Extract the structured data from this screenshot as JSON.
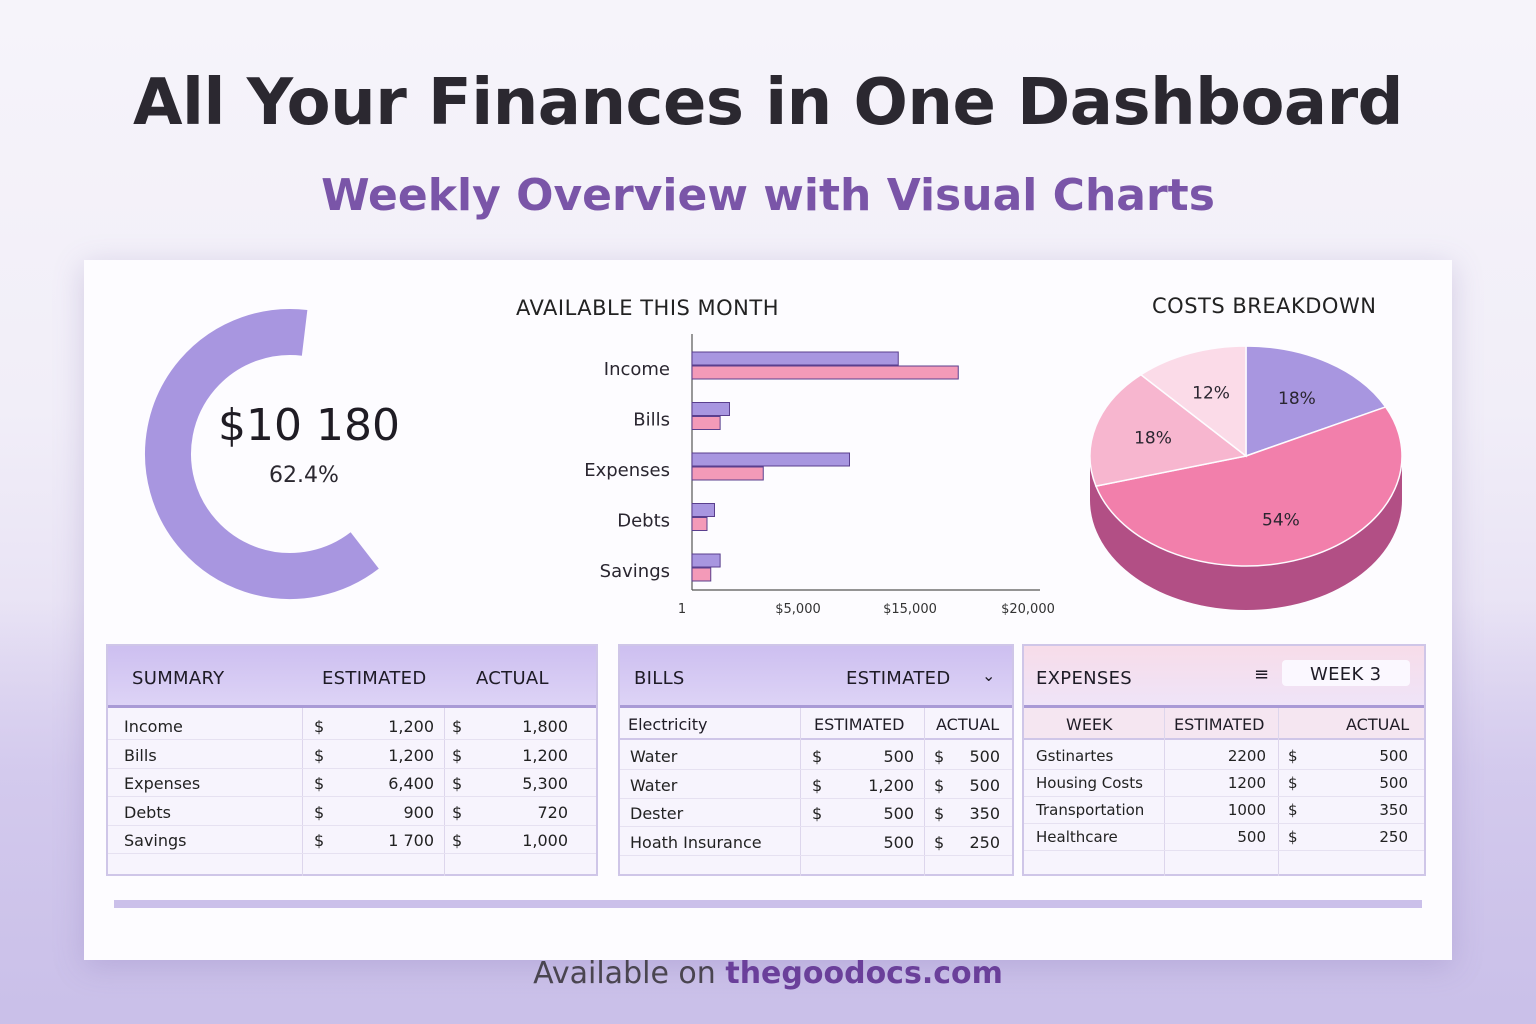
{
  "hero": {
    "title": "All Your Finances in One Dashboard",
    "subtitle": "Weekly Overview with Visual Charts"
  },
  "donut": {
    "amount": "$10 180",
    "percent": "62.4%",
    "fraction": 0.624,
    "color": "#a896e0"
  },
  "chart_data": [
    {
      "type": "bar",
      "title": "AVAILABLE THIS MONTH",
      "orientation": "horizontal",
      "categories": [
        "Income",
        "Bills",
        "Expenses",
        "Debts",
        "Savings"
      ],
      "series": [
        {
          "color": "#a896e0",
          "values": [
            11000,
            2000,
            8400,
            1200,
            1500
          ]
        },
        {
          "color": "#f39ab8",
          "values": [
            14200,
            1500,
            3800,
            800,
            1000
          ]
        }
      ],
      "tick_labels": [
        "1",
        "$5,000",
        "$15,000",
        "$20,000"
      ],
      "xlim": [
        0,
        16000
      ]
    },
    {
      "type": "pie",
      "title": "COSTS BREAKDOWN",
      "slices": [
        {
          "label": "18%",
          "value": 18,
          "color": "#a896e0"
        },
        {
          "label": "54%",
          "value": 54,
          "color": "#f27fab"
        },
        {
          "label": "18%",
          "value": 18,
          "color": "#f7b6cf"
        },
        {
          "label": "12%",
          "value": 12,
          "color": "#fbdbe8"
        }
      ]
    }
  ],
  "summary": {
    "headers": [
      "SUMMARY",
      "ESTIMATED",
      "ACTUAL"
    ],
    "rows": [
      {
        "label": "Income",
        "cur1": "$",
        "est": "1,200",
        "cur2": "$",
        "act": "1,800"
      },
      {
        "label": "Bills",
        "cur1": "$",
        "est": "1,200",
        "cur2": "$",
        "act": "1,200"
      },
      {
        "label": "Expenses",
        "cur1": "$",
        "est": "6,400",
        "cur2": "$",
        "act": "5,300"
      },
      {
        "label": "Debts",
        "cur1": "$",
        "est": "900",
        "cur2": "$",
        "act": "720"
      },
      {
        "label": "Savings",
        "cur1": "$",
        "est": "1 700",
        "cur2": "$",
        "act": "1,000"
      }
    ]
  },
  "bills": {
    "title": "BILLS",
    "dropdown": "ESTIMATED",
    "columns": [
      "Electricity",
      "ESTIMATED",
      "ACTUAL"
    ],
    "rows": [
      {
        "label": "Water",
        "cur1": "$",
        "est": "500",
        "cur2": "$",
        "act": "500"
      },
      {
        "label": "Water",
        "cur1": "$",
        "est": "1,200",
        "cur2": "$",
        "act": "500"
      },
      {
        "label": "Dester",
        "cur1": "$",
        "est": "500",
        "cur2": "$",
        "act": "350"
      },
      {
        "label": "Hoath Insurance",
        "cur1": "",
        "est": "500",
        "cur2": "$",
        "act": "250"
      }
    ]
  },
  "expenses": {
    "title": "EXPENSES",
    "week_label": "WEEK 3",
    "columns": [
      "WEEK",
      "ESTIMATED",
      "ACTUAL"
    ],
    "rows": [
      {
        "label": "Gstinartes",
        "est": "2200",
        "cur": "$",
        "act": "500"
      },
      {
        "label": "Housing Costs",
        "est": "1200",
        "cur": "$",
        "act": "500"
      },
      {
        "label": "Transportation",
        "est": "1000",
        "cur": "$",
        "act": "350"
      },
      {
        "label": "Healthcare",
        "est": "500",
        "cur": "$",
        "act": "250"
      }
    ]
  },
  "footer": {
    "prefix": "Available on",
    "site": "thegoodocs.com"
  }
}
